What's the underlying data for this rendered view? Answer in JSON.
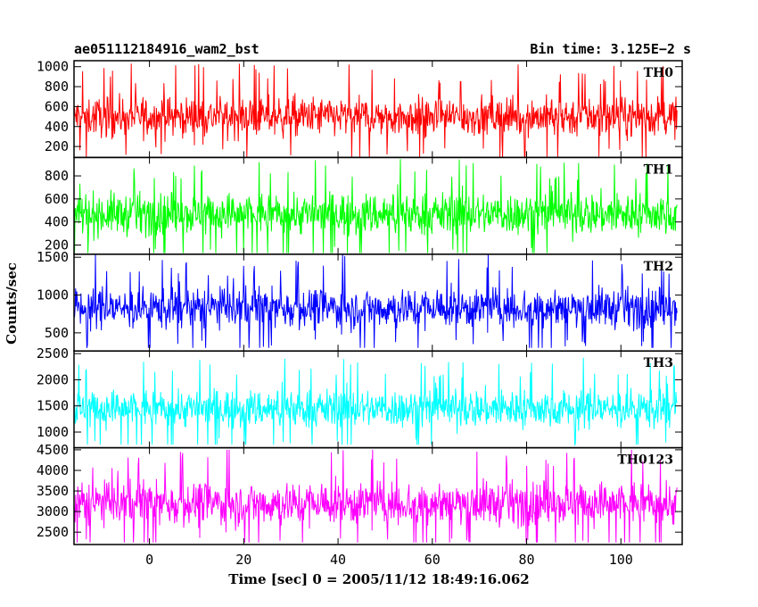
{
  "chart_data": {
    "type": "line",
    "title_left": "ae051112184916_wam2_bst",
    "title_right": "Bin time: 3.125E−2 s",
    "xlabel": "Time [sec] 0 = 2005/11/12 18:49:16.062",
    "ylabel": "Counts/sec",
    "xlim": [
      -16,
      113
    ],
    "x_data_range": [
      -16,
      112
    ],
    "x_ticks": [
      0,
      20,
      40,
      60,
      80,
      100
    ],
    "x_tick_labels": [
      "0",
      "20",
      "40",
      "60",
      "80",
      "100"
    ],
    "grid": false,
    "panels": [
      {
        "label": "TH0",
        "color": "#ff0000",
        "ylim": [
          90,
          1060
        ],
        "y_ticks": [
          200,
          400,
          600,
          800,
          1000
        ],
        "y_tick_labels": [
          "200",
          "400",
          "600",
          "800",
          "1000"
        ],
        "mean": 500,
        "spread": 140,
        "min_value": 90,
        "max_value": 1060
      },
      {
        "label": "TH1",
        "color": "#00ff00",
        "ylim": [
          120,
          960
        ],
        "y_ticks": [
          200,
          400,
          600,
          800
        ],
        "y_tick_labels": [
          "200",
          "400",
          "600",
          "800"
        ],
        "mean": 470,
        "spread": 130,
        "min_value": 130,
        "max_value": 950
      },
      {
        "label": "TH2",
        "color": "#0000ff",
        "ylim": [
          260,
          1540
        ],
        "y_ticks": [
          500,
          1000,
          1500
        ],
        "y_tick_labels": [
          "500",
          "1000",
          "1500"
        ],
        "mean": 830,
        "spread": 190,
        "min_value": 300,
        "max_value": 1540
      },
      {
        "label": "TH3",
        "color": "#00ffff",
        "ylim": [
          700,
          2550
        ],
        "y_ticks": [
          1000,
          1500,
          2000,
          2500
        ],
        "y_tick_labels": [
          "1000",
          "1500",
          "2000",
          "2500"
        ],
        "mean": 1450,
        "spread": 260,
        "min_value": 760,
        "max_value": 2500
      },
      {
        "label": "TH0123",
        "color": "#ff00ff",
        "ylim": [
          2200,
          4550
        ],
        "y_ticks": [
          2500,
          3000,
          3500,
          4000,
          4500
        ],
        "y_tick_labels": [
          "2500",
          "3000",
          "3500",
          "4000",
          "4500"
        ],
        "mean": 3200,
        "spread": 380,
        "min_value": 2250,
        "max_value": 4500
      }
    ]
  }
}
